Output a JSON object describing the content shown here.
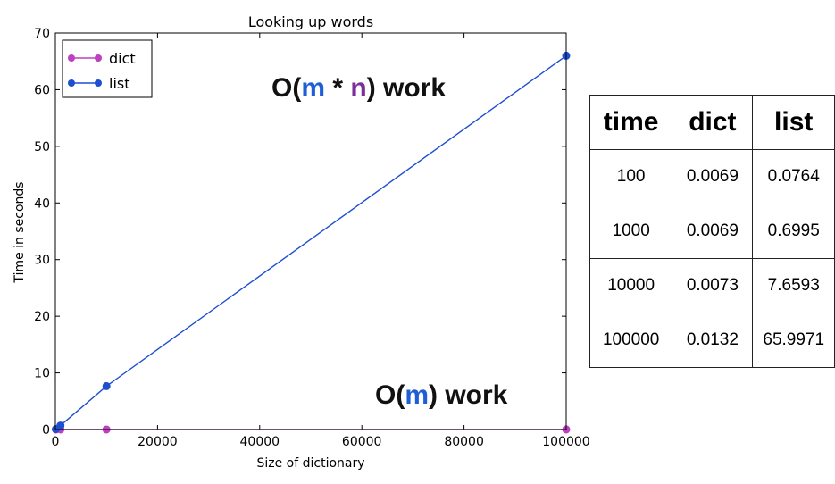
{
  "chart_data": {
    "type": "line",
    "title": "Looking up words",
    "xlabel": "Size of dictionary",
    "ylabel": "Time in seconds",
    "xlim": [
      0,
      100000
    ],
    "ylim": [
      0,
      70
    ],
    "xticks": [
      0,
      20000,
      40000,
      60000,
      80000,
      100000
    ],
    "yticks": [
      0,
      10,
      20,
      30,
      40,
      50,
      60,
      70
    ],
    "legend_position": "top-left",
    "grid": false,
    "x": [
      100,
      1000,
      10000,
      100000
    ],
    "series": [
      {
        "name": "dict",
        "color": "#bf40bf",
        "values": [
          0.0069,
          0.0069,
          0.0073,
          0.0132
        ]
      },
      {
        "name": "list",
        "color": "#1f4fd1",
        "values": [
          0.0764,
          0.6995,
          7.6593,
          65.9971
        ]
      }
    ]
  },
  "annotations": {
    "upper": {
      "prefix": "O(",
      "m": "m",
      "star": " * ",
      "n": "n",
      "suffix": ") work",
      "m_color": "#1f5fd6",
      "n_color": "#7a2f9a"
    },
    "lower": {
      "prefix": "O(",
      "m": "m",
      "suffix": ") work",
      "m_color": "#1f5fd6"
    }
  },
  "table": {
    "headers": [
      "time",
      "dict",
      "list"
    ],
    "rows": [
      [
        "100",
        "0.0069",
        "0.0764"
      ],
      [
        "1000",
        "0.0069",
        "0.6995"
      ],
      [
        "10000",
        "0.0073",
        "7.6593"
      ],
      [
        "100000",
        "0.0132",
        "65.9971"
      ]
    ]
  }
}
